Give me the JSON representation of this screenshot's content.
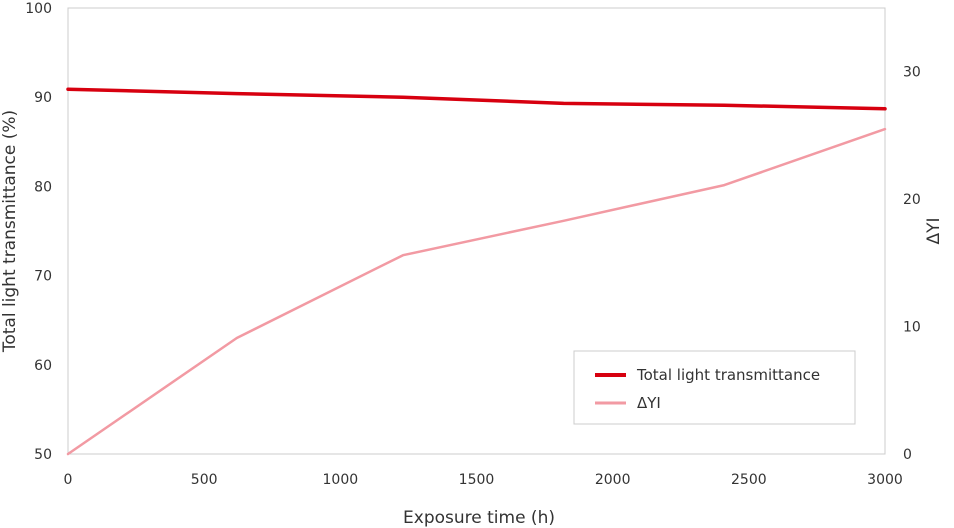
{
  "chart_data": {
    "type": "line",
    "title": "",
    "xlabel": "Exposure time (h)",
    "ylabel": "Total light transmittance (%)",
    "y2label": "ΔYI",
    "x": [
      0,
      620,
      1230,
      1820,
      2410,
      3000
    ],
    "xlim": [
      0,
      3000
    ],
    "ylim": [
      50,
      100
    ],
    "y2lim": [
      0,
      35
    ],
    "xticks": [
      0,
      500,
      1000,
      1500,
      2000,
      2500,
      3000
    ],
    "yticks": [
      50,
      60,
      70,
      80,
      90,
      100
    ],
    "y2ticks": [
      0,
      10,
      20,
      30
    ],
    "grid": false,
    "legend_position": "bottom-right",
    "series": [
      {
        "name": "Total light transmittance",
        "axis": "left",
        "color": "#d7000f",
        "values": [
          90.9,
          90.4,
          90.0,
          89.3,
          89.1,
          88.7
        ]
      },
      {
        "name": "ΔYI",
        "axis": "right",
        "color": "#f29aa3",
        "values": [
          0,
          9.1,
          15.6,
          18.3,
          21.1,
          25.5
        ]
      }
    ]
  }
}
